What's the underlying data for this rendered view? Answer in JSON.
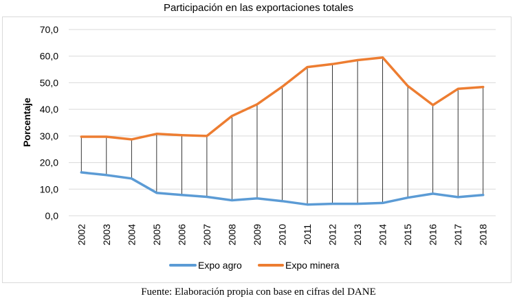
{
  "chart_data": {
    "type": "line",
    "title": "Participación en las exportaciones totales",
    "xlabel": "",
    "ylabel": "Porcentaje",
    "ylim": [
      0,
      70
    ],
    "yticks": [
      "0,0",
      "10,0",
      "20,0",
      "30,0",
      "40,0",
      "50,0",
      "60,0",
      "70,0"
    ],
    "grid": true,
    "legend_position": "bottom",
    "categories": [
      "2002",
      "2003",
      "2004",
      "2005",
      "2006",
      "2007",
      "2008",
      "2009",
      "2010",
      "2011",
      "2012",
      "2013",
      "2014",
      "2015",
      "2016",
      "2017",
      "2018"
    ],
    "drop_lines": true,
    "series": [
      {
        "name": "Expo agro",
        "color": "#5b9bd5",
        "values": [
          16.3,
          15.3,
          14.0,
          8.6,
          7.8,
          7.1,
          5.8,
          6.5,
          5.5,
          4.2,
          4.5,
          4.5,
          4.8,
          6.8,
          8.3,
          7.0,
          7.8
        ]
      },
      {
        "name": "Expo minera",
        "color": "#ed7d31",
        "values": [
          29.7,
          29.7,
          28.7,
          30.8,
          30.3,
          30.0,
          37.5,
          41.9,
          48.5,
          55.9,
          57.0,
          58.5,
          59.5,
          48.8,
          41.6,
          47.7,
          48.4
        ]
      }
    ]
  },
  "source_note": "Fuente: Elaboración propia con base en cifras del DANE"
}
